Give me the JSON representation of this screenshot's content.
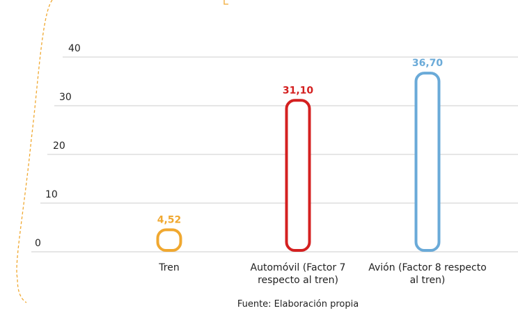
{
  "chart_data": {
    "type": "bar",
    "categories": [
      "Tren",
      "Automóvil (Factor 7 respecto al tren)",
      "Avión (Factor 8 respecto al tren)"
    ],
    "values": [
      4.52,
      31.1,
      36.7
    ],
    "value_labels": [
      "4,52",
      "31,10",
      "36,70"
    ],
    "colors": [
      "#f0a830",
      "#d42020",
      "#6aaad8"
    ],
    "ylim": [
      0,
      40
    ],
    "yticks": [
      0,
      10,
      20,
      30,
      40
    ],
    "grid": true,
    "source": "Fuente: Elaboración propia"
  }
}
